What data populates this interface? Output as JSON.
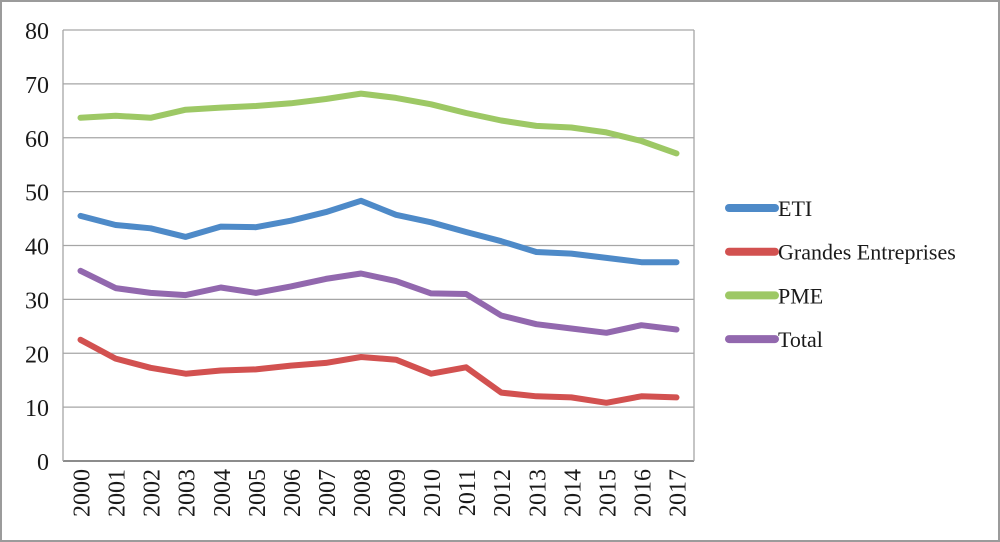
{
  "chart_data": {
    "type": "line",
    "title": "",
    "xlabel": "",
    "ylabel": "",
    "categories": [
      "2000",
      "2001",
      "2002",
      "2003",
      "2004",
      "2005",
      "2006",
      "2007",
      "2008",
      "2009",
      "2010",
      "2011",
      "2012",
      "2013",
      "2014",
      "2015",
      "2016",
      "2017"
    ],
    "y_ticks": [
      0,
      10,
      20,
      30,
      40,
      50,
      60,
      70,
      80
    ],
    "ylim": [
      0,
      80
    ],
    "grid": "horizontal",
    "legend_position": "right",
    "series": [
      {
        "name": "ETI",
        "color": "#4E8AC8",
        "values": [
          45.5,
          43.8,
          43.2,
          41.6,
          43.5,
          43.4,
          44.6,
          46.2,
          48.3,
          45.7,
          44.3,
          42.5,
          40.8,
          38.8,
          38.5,
          37.7,
          36.9,
          36.9
        ]
      },
      {
        "name": "Grandes Entreprises",
        "color": "#D25150",
        "values": [
          22.5,
          19.0,
          17.3,
          16.2,
          16.8,
          17.0,
          17.7,
          18.2,
          19.3,
          18.8,
          16.2,
          17.4,
          12.7,
          12.0,
          11.8,
          10.8,
          12.0,
          11.8
        ]
      },
      {
        "name": "PME",
        "color": "#9DC865",
        "values": [
          63.7,
          64.1,
          63.7,
          65.2,
          65.6,
          65.9,
          66.4,
          67.2,
          68.2,
          67.4,
          66.2,
          64.6,
          63.2,
          62.2,
          61.9,
          61.0,
          59.4,
          57.1
        ]
      },
      {
        "name": "Total",
        "color": "#9268AE",
        "values": [
          35.3,
          32.1,
          31.2,
          30.8,
          32.2,
          31.2,
          32.4,
          33.8,
          34.8,
          33.4,
          31.1,
          31.0,
          27.0,
          25.4,
          24.6,
          23.8,
          25.2,
          24.4
        ]
      }
    ]
  },
  "colors": {
    "gridline": "#a6a6a6",
    "plot_border": "#a6a6a6",
    "axis_line": "#8c8c8c",
    "outer_border": "#9b9b9b",
    "label_text": "#1a1a1a",
    "background": "#ffffff"
  }
}
